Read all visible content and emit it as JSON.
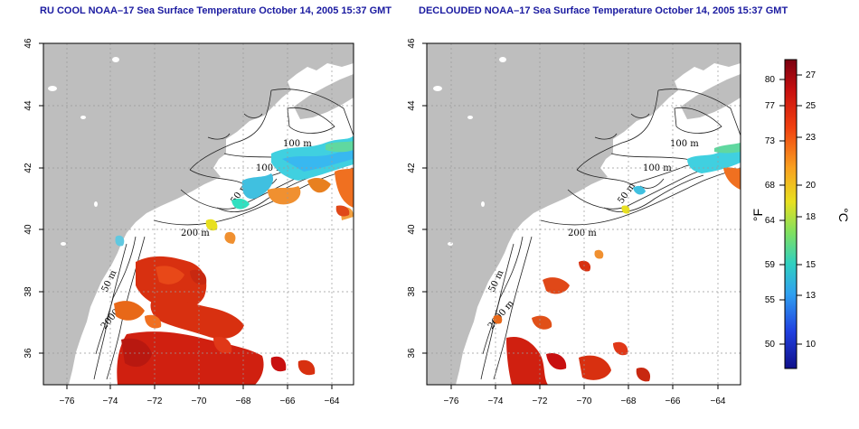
{
  "panels": [
    {
      "title": "RU COOL NOAA–17 Sea Surface Temperature October 14, 2005 15:37 GMT",
      "x_ticks": [
        "−76",
        "−74",
        "−72",
        "−70",
        "−68",
        "−66",
        "−64"
      ],
      "y_ticks": [
        "46",
        "44",
        "42",
        "40",
        "38",
        "36"
      ],
      "contour_labels": [
        "100 m",
        "100 m",
        "50 m",
        "200 m",
        "50 m",
        "2000 m"
      ]
    },
    {
      "title": "DECLOUDED NOAA–17 Sea Surface Temperature October 14, 2005 15:37 GMT",
      "x_ticks": [
        "−76",
        "−74",
        "−72",
        "−70",
        "−68",
        "−66",
        "−64"
      ],
      "y_ticks": [
        "46",
        "44",
        "42",
        "40",
        "38",
        "36"
      ],
      "contour_labels": [
        "100 m",
        "100 m",
        "50 m",
        "200 m",
        "50 m",
        "2000 m"
      ]
    }
  ],
  "colorbar": {
    "fahrenheit_label": "°F",
    "celsius_label": "°C",
    "fahrenheit_ticks": [
      "80",
      "77",
      "73",
      "68",
      "64",
      "59",
      "55",
      "50"
    ],
    "celsius_ticks": [
      "27",
      "25",
      "23",
      "20",
      "18",
      "15",
      "13",
      "10"
    ],
    "colors": [
      "#7a0010",
      "#c81010",
      "#f04010",
      "#f8a020",
      "#e8e020",
      "#80e060",
      "#30d0c0",
      "#30a0f0",
      "#2040e0",
      "#10108a"
    ]
  },
  "map_data": {
    "lon_range": [
      -77,
      -63
    ],
    "lat_range": [
      35,
      46
    ],
    "grid": "dotted every 2 degrees",
    "land_color": "#bebebe",
    "ocean_color": "#ffffff"
  }
}
